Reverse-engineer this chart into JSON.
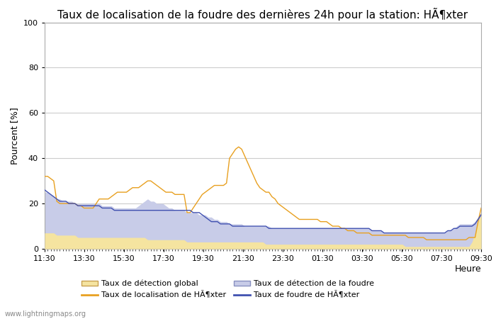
{
  "title": "Taux de localisation de la foudre des dernières 24h pour la station: HÃ¶xter",
  "ylabel": "Pourcent [%]",
  "xlabel": "Heure",
  "watermark": "www.lightningmaps.org",
  "ylim": [
    0,
    100
  ],
  "yticks": [
    0,
    20,
    40,
    60,
    80,
    100
  ],
  "xtick_labels": [
    "11:30",
    "13:30",
    "15:30",
    "17:30",
    "19:30",
    "21:30",
    "23:30",
    "01:30",
    "03:30",
    "05:30",
    "07:30",
    "09:30"
  ],
  "legend_row1": [
    {
      "label": "Taux de détection global",
      "type": "fill",
      "color": "#f5e4a0",
      "edgecolor": "#c8a050"
    },
    {
      "label": "Taux de localisation de HÃ¶xter",
      "type": "line",
      "color": "#e8a020"
    }
  ],
  "legend_row2": [
    {
      "label": "Taux de détection de la foudre",
      "type": "fill",
      "color": "#c8cce8",
      "edgecolor": "#8890c0"
    },
    {
      "label": "Taux de foudre de HÃ¶xter",
      "type": "line",
      "color": "#4050b0"
    }
  ],
  "n_points": 145,
  "t_global_fill": [
    7,
    7,
    7,
    7,
    6,
    6,
    6,
    6,
    6,
    6,
    6,
    5,
    5,
    5,
    5,
    5,
    5,
    5,
    5,
    5,
    5,
    5,
    5,
    5,
    5,
    5,
    5,
    5,
    5,
    5,
    5,
    5,
    5,
    5,
    4,
    4,
    4,
    4,
    4,
    4,
    4,
    4,
    4,
    4,
    4,
    4,
    4,
    3,
    3,
    3,
    3,
    3,
    3,
    3,
    3,
    3,
    3,
    3,
    3,
    3,
    3,
    3,
    3,
    3,
    3,
    3,
    3,
    3,
    3,
    3,
    3,
    3,
    3,
    2,
    2,
    2,
    2,
    2,
    2,
    2,
    2,
    2,
    2,
    2,
    2,
    2,
    2,
    2,
    2,
    2,
    2,
    2,
    2,
    2,
    2,
    2,
    2,
    2,
    2,
    2,
    2,
    2,
    2,
    2,
    2,
    2,
    2,
    2,
    2,
    2,
    2,
    2,
    2,
    2,
    2,
    2,
    2,
    2,
    2,
    1,
    1,
    1,
    1,
    1,
    1,
    1,
    1,
    1,
    1,
    1,
    1,
    1,
    1,
    1,
    1,
    1,
    1,
    1,
    1,
    1,
    1,
    3,
    7,
    12,
    15
  ],
  "t_detection_fill": [
    25,
    25,
    24,
    23,
    22,
    22,
    21,
    21,
    21,
    21,
    20,
    20,
    20,
    20,
    20,
    20,
    20,
    20,
    20,
    19,
    19,
    19,
    19,
    18,
    18,
    18,
    18,
    18,
    18,
    18,
    18,
    19,
    20,
    21,
    22,
    21,
    21,
    20,
    20,
    20,
    19,
    18,
    18,
    17,
    17,
    17,
    17,
    16,
    16,
    16,
    16,
    15,
    15,
    15,
    14,
    14,
    13,
    13,
    12,
    12,
    12,
    11,
    11,
    11,
    11,
    11,
    10,
    10,
    10,
    10,
    10,
    10,
    10,
    10,
    10,
    9,
    9,
    9,
    9,
    9,
    9,
    9,
    9,
    9,
    9,
    9,
    9,
    9,
    9,
    9,
    9,
    9,
    9,
    9,
    9,
    9,
    9,
    9,
    9,
    9,
    9,
    9,
    9,
    9,
    9,
    9,
    9,
    9,
    8,
    8,
    8,
    8,
    7,
    7,
    7,
    7,
    7,
    7,
    7,
    7,
    7,
    7,
    7,
    7,
    7,
    7,
    7,
    7,
    7,
    7,
    7,
    7,
    7,
    8,
    8,
    9,
    10,
    11,
    11,
    11,
    11,
    11,
    12,
    14,
    16
  ],
  "y_orange": [
    32,
    32,
    31,
    30,
    21,
    20,
    20,
    20,
    20,
    20,
    20,
    19,
    19,
    18,
    18,
    18,
    18,
    20,
    22,
    22,
    22,
    22,
    23,
    24,
    25,
    25,
    25,
    25,
    26,
    27,
    27,
    27,
    28,
    29,
    30,
    30,
    29,
    28,
    27,
    26,
    25,
    25,
    25,
    24,
    24,
    24,
    24,
    16,
    16,
    18,
    20,
    22,
    24,
    25,
    26,
    27,
    28,
    28,
    28,
    28,
    29,
    40,
    42,
    44,
    45,
    44,
    41,
    38,
    35,
    32,
    29,
    27,
    26,
    25,
    25,
    23,
    22,
    20,
    19,
    18,
    17,
    16,
    15,
    14,
    13,
    13,
    13,
    13,
    13,
    13,
    13,
    12,
    12,
    12,
    11,
    10,
    10,
    10,
    9,
    9,
    8,
    8,
    8,
    7,
    7,
    7,
    7,
    7,
    6,
    6,
    6,
    6,
    6,
    6,
    6,
    6,
    6,
    6,
    6,
    6,
    5,
    5,
    5,
    5,
    5,
    5,
    4,
    4,
    4,
    4,
    4,
    4,
    4,
    4,
    4,
    4,
    4,
    4,
    4,
    4,
    5,
    5,
    5,
    12,
    18
  ],
  "y_blue": [
    26,
    25,
    24,
    23,
    22,
    21,
    21,
    21,
    20,
    20,
    20,
    19,
    19,
    19,
    19,
    19,
    19,
    19,
    19,
    18,
    18,
    18,
    18,
    17,
    17,
    17,
    17,
    17,
    17,
    17,
    17,
    17,
    17,
    17,
    17,
    17,
    17,
    17,
    17,
    17,
    17,
    17,
    17,
    17,
    17,
    17,
    17,
    17,
    17,
    16,
    16,
    16,
    15,
    14,
    13,
    12,
    12,
    12,
    11,
    11,
    11,
    11,
    10,
    10,
    10,
    10,
    10,
    10,
    10,
    10,
    10,
    10,
    10,
    10,
    9,
    9,
    9,
    9,
    9,
    9,
    9,
    9,
    9,
    9,
    9,
    9,
    9,
    9,
    9,
    9,
    9,
    9,
    9,
    9,
    9,
    9,
    9,
    9,
    9,
    9,
    9,
    9,
    9,
    9,
    9,
    9,
    9,
    9,
    8,
    8,
    8,
    8,
    7,
    7,
    7,
    7,
    7,
    7,
    7,
    7,
    7,
    7,
    7,
    7,
    7,
    7,
    7,
    7,
    7,
    7,
    7,
    7,
    7,
    8,
    8,
    9,
    9,
    10,
    10,
    10,
    10,
    10,
    11,
    13,
    15
  ],
  "bg_color": "#ffffff",
  "grid_color": "#cccccc",
  "fill_global_color": "#f5e4a0",
  "fill_global_edge": "#c8a050",
  "fill_detect_color": "#c8cce8",
  "fill_detect_edge": "#8890c0",
  "line_orange_color": "#e8a020",
  "line_blue_color": "#4050b0",
  "title_fontsize": 11,
  "axis_fontsize": 9,
  "tick_fontsize": 8,
  "legend_fontsize": 8
}
